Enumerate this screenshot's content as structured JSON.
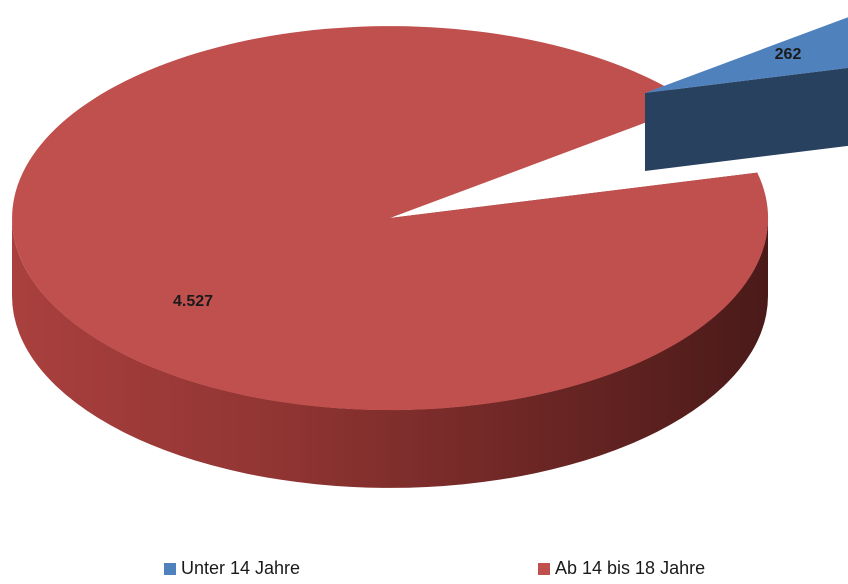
{
  "chart_data": {
    "type": "pie",
    "style": "3d-exploded",
    "legend_position": "bottom",
    "series": [
      {
        "name": "Unter 14 Jahre",
        "value": 262,
        "label": "262",
        "color": "#4f81bd",
        "exploded": true
      },
      {
        "name": "Ab 14 bis 18 Jahre",
        "value": 4527,
        "label": "4.527",
        "color": "#c0504d",
        "exploded": false
      }
    ]
  }
}
